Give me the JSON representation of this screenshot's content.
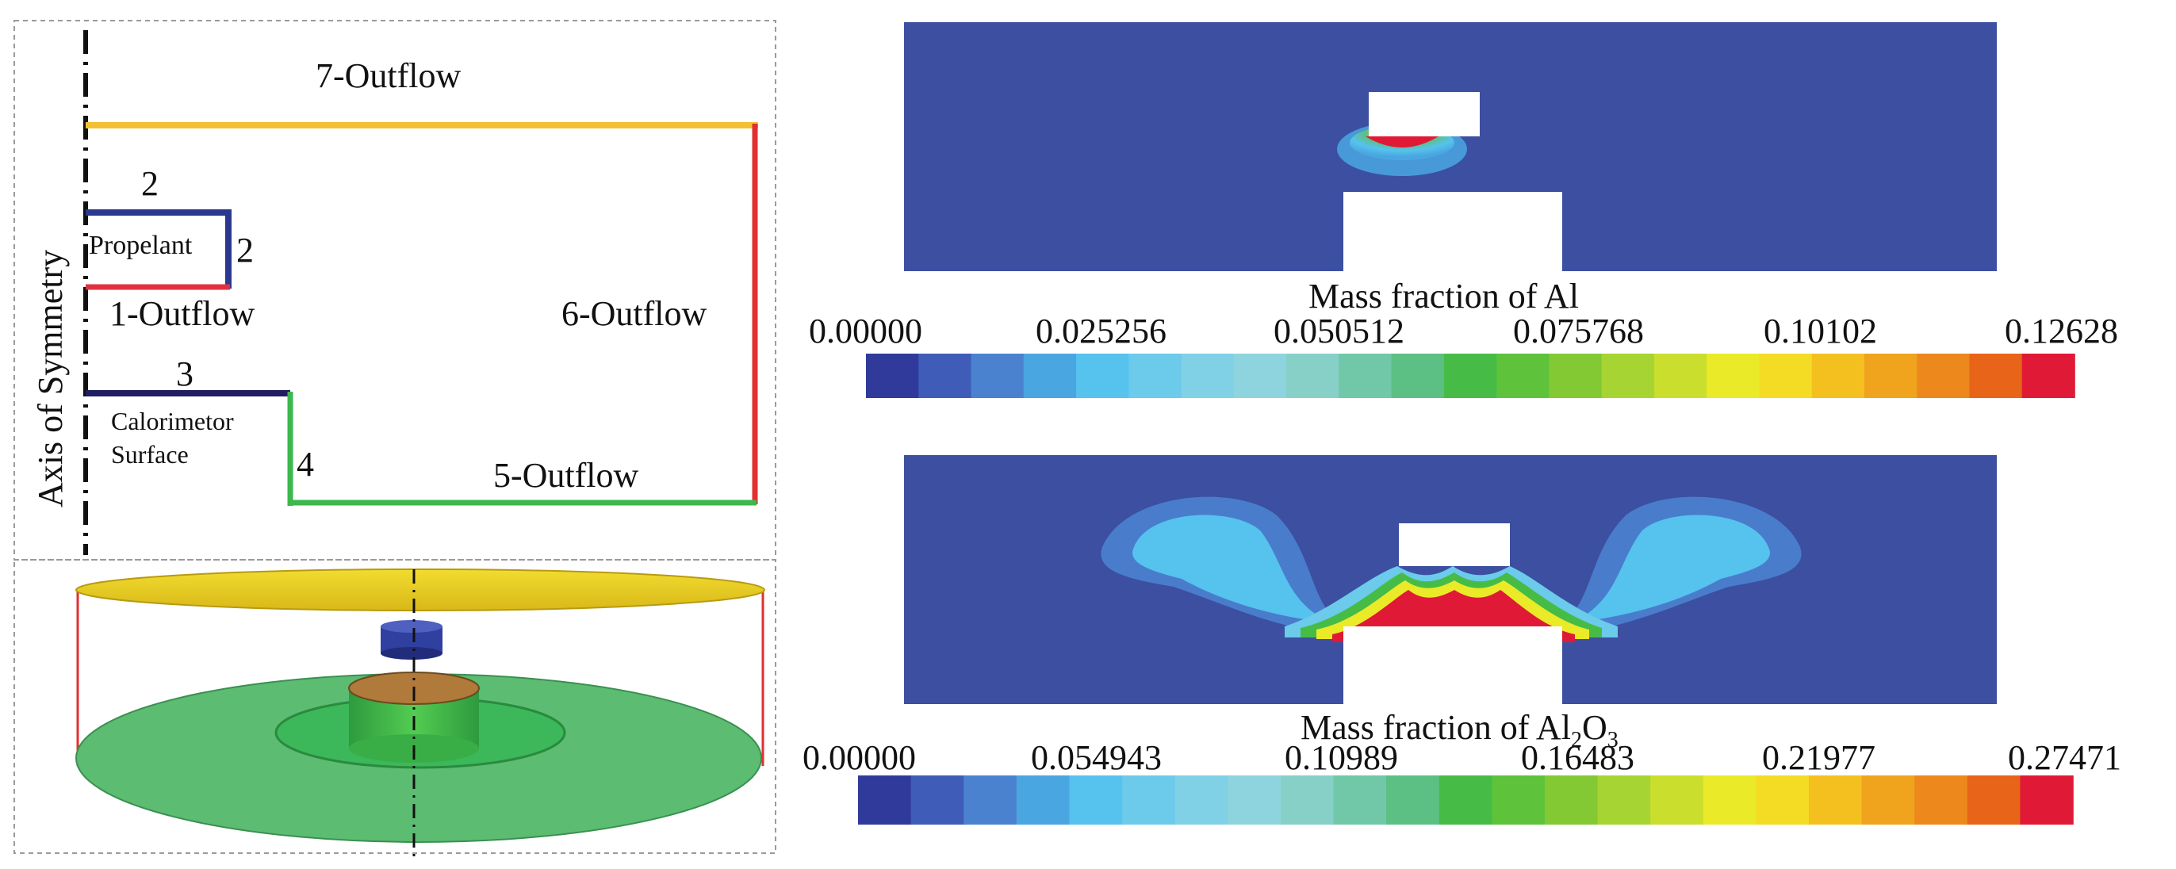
{
  "schematic": {
    "axis_label": "Axis of Symmetry",
    "boundary_labels": {
      "outflow_7": "7-Outflow",
      "num_2_top": "2",
      "num_2_side": "2",
      "propellant": "Propelant",
      "outflow_1": "1-Outflow",
      "outflow_6": "6-Outflow",
      "num_3": "3",
      "calorimeter_line1": "Calorimetor",
      "calorimeter_line2": "Surface",
      "num_4": "4",
      "outflow_5": "5-Outflow"
    },
    "colors": {
      "outflow_top": "#f2c030",
      "outflow_right": "#e03030",
      "propellant_box": "#2c3890",
      "propellant_bottom": "#e03040",
      "calorimeter_top": "#1e1e60",
      "floor": "#3cb84c"
    }
  },
  "legend_al": {
    "title": "Mass fraction of Al",
    "ticks": [
      "0.00000",
      "0.025256",
      "0.050512",
      "0.075768",
      "0.10102",
      "0.12628"
    ]
  },
  "legend_al2o3": {
    "title_prefix": "Mass fraction of Al",
    "title_sub1": "2",
    "title_mid": "O",
    "title_sub2": "3",
    "ticks": [
      "0.00000",
      "0.054943",
      "0.10989",
      "0.16483",
      "0.21977",
      "0.27471"
    ]
  },
  "colormap": [
    "#303a9a",
    "#3e5cb8",
    "#4a82d0",
    "#4aa6e0",
    "#56c2ee",
    "#6ccaea",
    "#80d0e6",
    "#8ed4de",
    "#86d0c8",
    "#70c8a8",
    "#5cc084",
    "#46bc46",
    "#5ec23a",
    "#82c934",
    "#a6d432",
    "#cade2e",
    "#eaea28",
    "#f4dc24",
    "#f4c020",
    "#f0a41e",
    "#ec881c",
    "#e86418",
    "#e01a36"
  ],
  "contour_background": "#3c4fa0"
}
